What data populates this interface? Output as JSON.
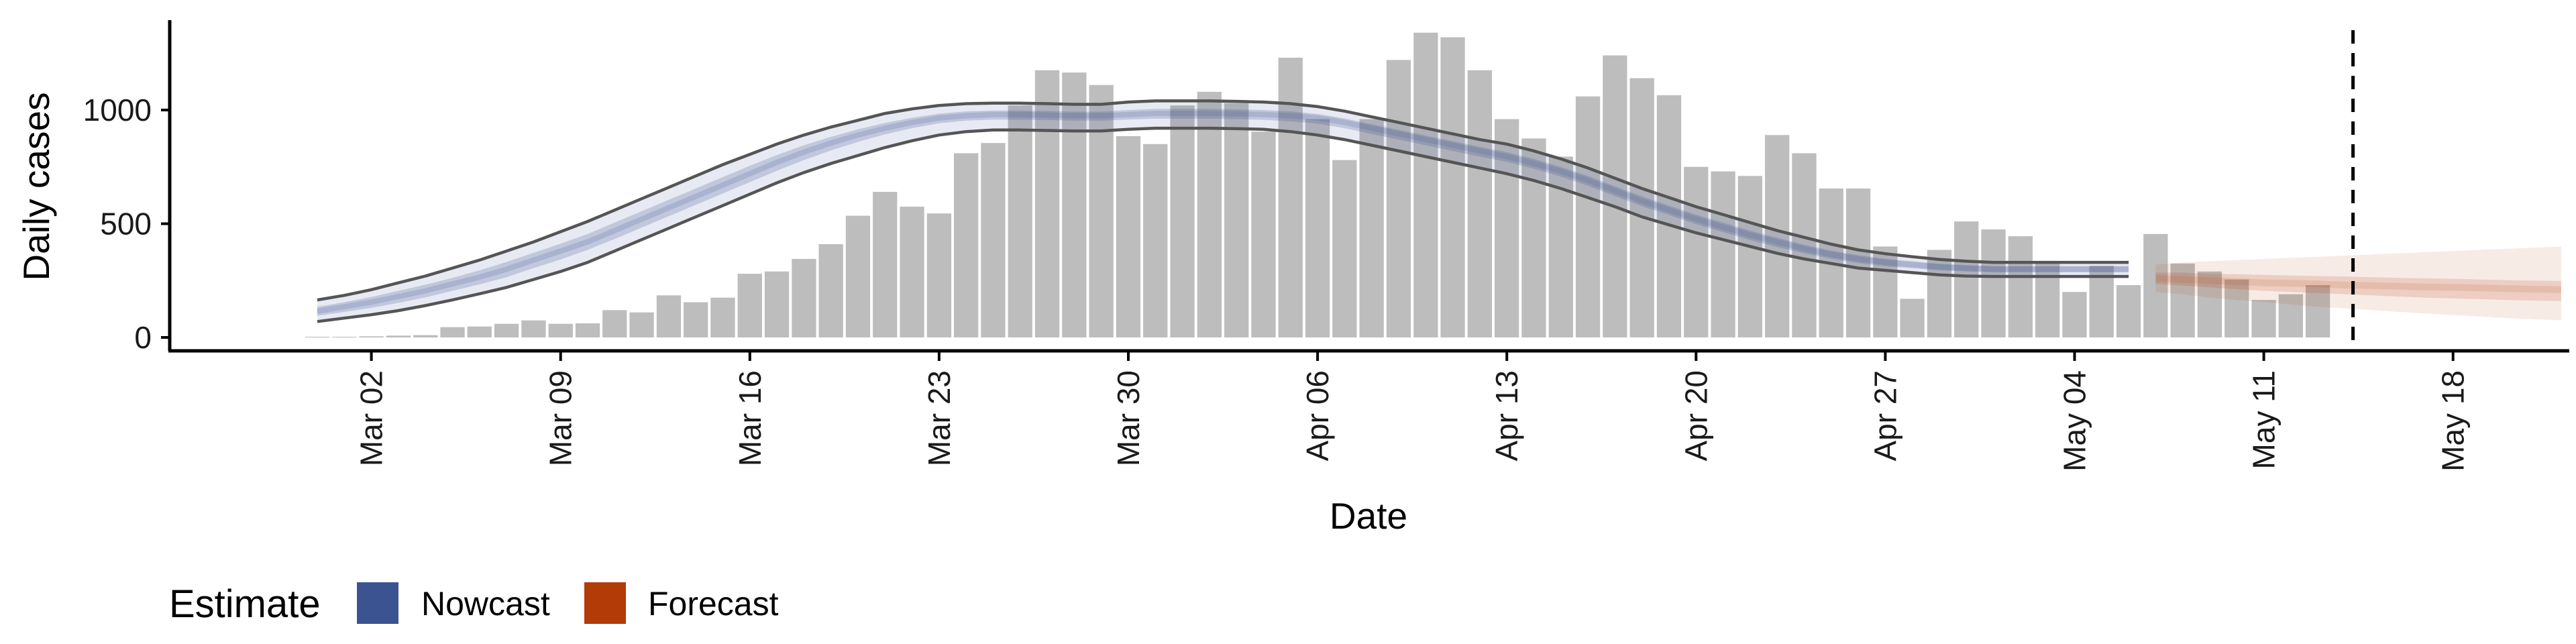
{
  "chart_data": {
    "type": "bar",
    "xlabel": "Date",
    "ylabel": "Daily cases",
    "ylim": [
      -60,
      1400
    ],
    "yticks": [
      0,
      500,
      1000
    ],
    "start_date": "2020-02-29",
    "xticks": [
      "Mar 02",
      "Mar 09",
      "Mar 16",
      "Mar 23",
      "Mar 30",
      "Apr 06",
      "Apr 13",
      "Apr 20",
      "Apr 27",
      "May 04",
      "May 11",
      "May 18"
    ],
    "bar_color": "#bdbdbd",
    "cases": [
      1,
      3,
      5,
      8,
      10,
      45,
      48,
      60,
      75,
      60,
      62,
      120,
      110,
      185,
      155,
      175,
      280,
      290,
      345,
      410,
      535,
      640,
      575,
      545,
      810,
      855,
      1020,
      1175,
      1165,
      1110,
      885,
      850,
      1020,
      1080,
      1030,
      905,
      1230,
      960,
      780,
      960,
      1220,
      1340,
      1320,
      1175,
      960,
      875,
      795,
      1060,
      1240,
      1140,
      1065,
      750,
      730,
      710,
      890,
      810,
      655,
      655,
      400,
      170,
      385,
      510,
      475,
      445,
      335,
      200,
      315,
      230,
      455,
      325,
      290,
      255,
      165,
      190,
      230
    ],
    "nowcast": {
      "start_date": "2020-02-29",
      "color": "#3b5491",
      "median": [
        115,
        135,
        155,
        180,
        205,
        235,
        265,
        300,
        340,
        380,
        420,
        470,
        520,
        570,
        620,
        670,
        720,
        770,
        815,
        855,
        890,
        920,
        945,
        965,
        975,
        980,
        980,
        978,
        975,
        975,
        980,
        985,
        985,
        985,
        983,
        980,
        975,
        965,
        945,
        920,
        895,
        870,
        845,
        820,
        795,
        765,
        730,
        690,
        645,
        600,
        560,
        520,
        485,
        450,
        420,
        390,
        365,
        345,
        330,
        320,
        310,
        305,
        300,
        300,
        300,
        300,
        300,
        300
      ],
      "upper90": [
        165,
        185,
        210,
        240,
        270,
        305,
        340,
        380,
        420,
        465,
        510,
        560,
        610,
        660,
        710,
        760,
        805,
        850,
        890,
        925,
        955,
        985,
        1005,
        1020,
        1028,
        1030,
        1030,
        1028,
        1025,
        1025,
        1035,
        1040,
        1040,
        1040,
        1038,
        1035,
        1028,
        1015,
        995,
        970,
        945,
        920,
        895,
        870,
        850,
        820,
        785,
        745,
        700,
        655,
        615,
        575,
        540,
        505,
        470,
        440,
        410,
        385,
        368,
        355,
        343,
        335,
        330,
        330,
        330,
        330,
        330,
        330
      ],
      "lower90": [
        70,
        85,
        100,
        118,
        140,
        165,
        192,
        220,
        255,
        290,
        330,
        380,
        430,
        480,
        530,
        580,
        630,
        680,
        725,
        765,
        800,
        835,
        865,
        890,
        905,
        912,
        912,
        910,
        908,
        908,
        915,
        920,
        920,
        920,
        918,
        915,
        905,
        890,
        870,
        845,
        820,
        795,
        770,
        745,
        720,
        690,
        655,
        615,
        575,
        530,
        495,
        460,
        430,
        400,
        370,
        345,
        325,
        305,
        295,
        285,
        275,
        270,
        268,
        268,
        268,
        268,
        268,
        268
      ],
      "upper50": [
        135,
        155,
        178,
        205,
        232,
        262,
        295,
        332,
        372,
        412,
        455,
        505,
        555,
        605,
        655,
        705,
        755,
        802,
        845,
        882,
        915,
        943,
        966,
        984,
        994,
        998,
        998,
        996,
        993,
        993,
        1000,
        1005,
        1005,
        1005,
        1003,
        1000,
        994,
        983,
        963,
        938,
        913,
        888,
        863,
        838,
        815,
        785,
        750,
        710,
        665,
        620,
        580,
        540,
        505,
        470,
        438,
        408,
        382,
        362,
        346,
        335,
        324,
        318,
        314,
        314,
        314,
        314,
        314,
        314
      ],
      "lower50": [
        95,
        112,
        130,
        152,
        176,
        205,
        233,
        265,
        305,
        343,
        385,
        433,
        483,
        533,
        583,
        633,
        683,
        733,
        780,
        822,
        860,
        893,
        920,
        942,
        953,
        958,
        958,
        956,
        953,
        953,
        958,
        962,
        962,
        962,
        960,
        957,
        950,
        940,
        920,
        895,
        870,
        845,
        820,
        795,
        772,
        742,
        707,
        667,
        622,
        577,
        538,
        498,
        463,
        428,
        398,
        370,
        346,
        327,
        313,
        304,
        295,
        290,
        286,
        286,
        286,
        286,
        286,
        286
      ]
    },
    "forecast": {
      "start_date": "2020-05-07",
      "color": "#b33b08",
      "median": [
        260,
        255,
        250,
        245,
        240,
        238,
        235,
        230,
        228,
        225,
        222,
        220,
        218,
        215,
        212,
        210
      ],
      "upper90": [
        320,
        330,
        335,
        340,
        345,
        350,
        355,
        360,
        365,
        370,
        375,
        380,
        385,
        390,
        395,
        400
      ],
      "lower90": [
        200,
        190,
        175,
        165,
        155,
        145,
        135,
        128,
        120,
        112,
        105,
        98,
        92,
        85,
        80,
        75
      ],
      "upper50": [
        285,
        285,
        280,
        278,
        275,
        272,
        270,
        268,
        265,
        262,
        260,
        258,
        255,
        252,
        250,
        248
      ],
      "lower50": [
        235,
        228,
        220,
        212,
        205,
        200,
        195,
        190,
        185,
        180,
        175,
        172,
        168,
        165,
        162,
        160
      ]
    },
    "vline_date": "2020-05-14",
    "legend": {
      "position": "bottom-left",
      "title": "Estimate",
      "items": [
        {
          "label": "Nowcast",
          "color": "#3b5491"
        },
        {
          "label": "Forecast",
          "color": "#b33b08"
        }
      ]
    }
  }
}
